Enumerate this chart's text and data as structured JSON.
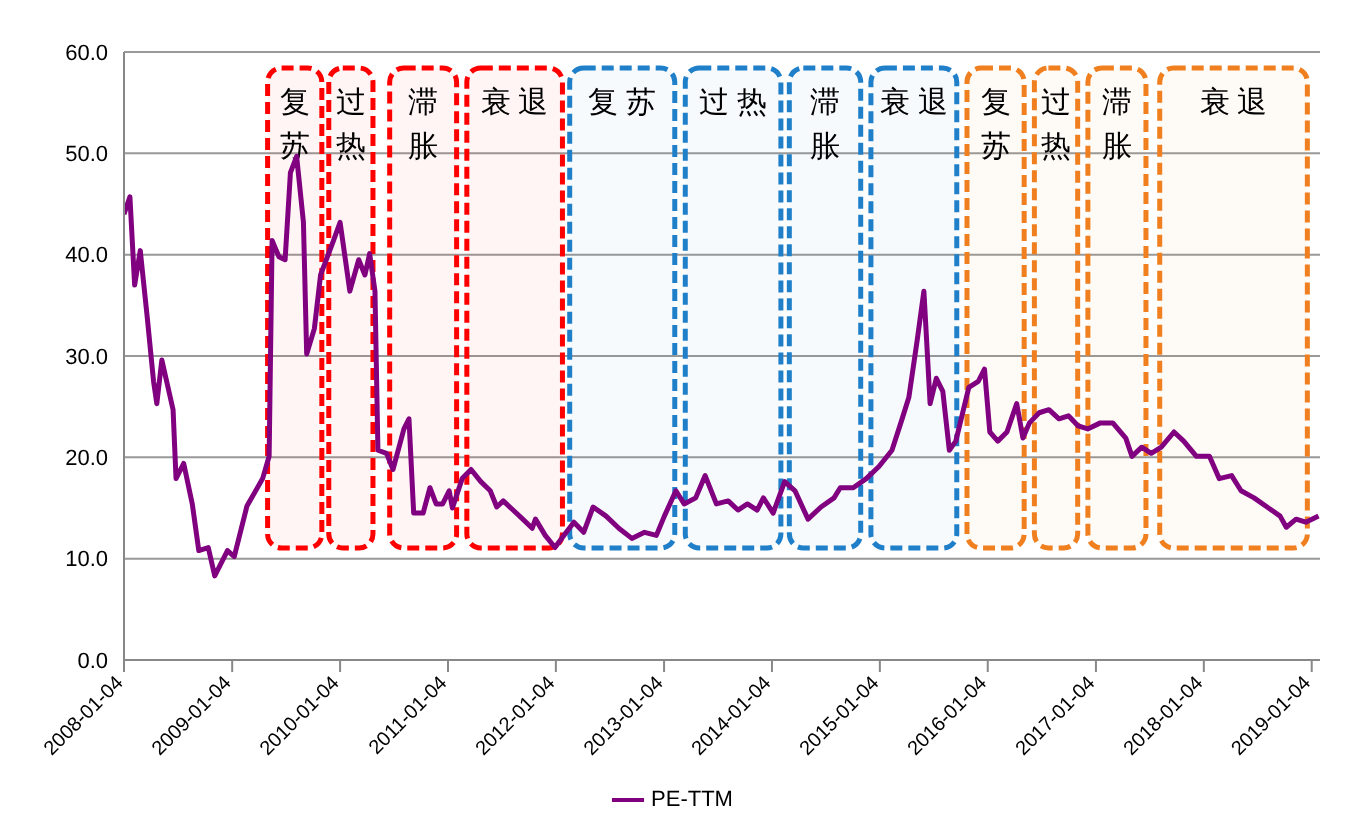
{
  "chart_data": {
    "type": "line",
    "x": [
      "2008-01-04",
      "2008-01-24",
      "2008-02-09",
      "2008-02-28",
      "2008-03-22",
      "2008-04-13",
      "2008-04-24",
      "2008-05-11",
      "2008-06-18",
      "2008-06-28",
      "2008-07-24",
      "2008-08-22",
      "2008-09-13",
      "2008-10-15",
      "2008-11-06",
      "2008-12-19",
      "2009-01-11",
      "2009-02-23",
      "2009-04-17",
      "2009-05-09",
      "2009-05-19",
      "2009-06-11",
      "2009-07-02",
      "2009-07-20",
      "2009-08-10",
      "2009-09-02",
      "2009-09-13",
      "2009-10-09",
      "2009-10-30",
      "2009-12-13",
      "2010-01-04",
      "2010-02-06",
      "2010-03-08",
      "2010-03-29",
      "2010-04-14",
      "2010-05-02",
      "2010-05-12",
      "2010-06-10",
      "2010-07-02",
      "2010-08-08",
      "2010-08-25",
      "2010-09-10",
      "2010-10-12",
      "2010-11-04",
      "2010-11-25",
      "2010-12-17",
      "2011-01-08",
      "2011-01-19",
      "2011-02-21",
      "2011-03-23",
      "2011-04-25",
      "2011-05-27",
      "2011-06-18",
      "2011-07-10",
      "2011-08-12",
      "2011-09-14",
      "2011-10-16",
      "2011-10-27",
      "2011-11-29",
      "2012-01-01",
      "2012-02-03",
      "2012-03-05",
      "2012-04-07",
      "2012-05-09",
      "2012-06-22",
      "2012-08-04",
      "2012-09-17",
      "2012-10-30",
      "2012-12-09",
      "2013-01-05",
      "2013-02-13",
      "2013-03-13",
      "2013-04-21",
      "2013-05-23",
      "2013-06-30",
      "2013-08-09",
      "2013-09-11",
      "2013-10-13",
      "2013-11-15",
      "2013-12-06",
      "2014-01-08",
      "2014-02-16",
      "2014-03-23",
      "2014-05-06",
      "2014-06-19",
      "2014-08-02",
      "2014-08-23",
      "2014-10-06",
      "2014-11-19",
      "2015-01-01",
      "2015-02-14",
      "2015-03-16",
      "2015-04-12",
      "2015-05-10",
      "2015-06-02",
      "2015-06-23",
      "2015-07-14",
      "2015-08-05",
      "2015-08-27",
      "2015-09-18",
      "2015-11-01",
      "2015-12-03",
      "2015-12-24",
      "2016-01-11",
      "2016-02-07",
      "2016-03-09",
      "2016-04-11",
      "2016-05-02",
      "2016-05-24",
      "2016-06-26",
      "2016-07-29",
      "2016-09-01",
      "2016-10-03",
      "2016-11-05",
      "2016-12-07",
      "2017-01-19",
      "2017-03-02",
      "2017-04-15",
      "2017-05-06",
      "2017-06-08",
      "2017-07-10",
      "2017-08-13",
      "2017-09-25",
      "2017-10-28",
      "2017-12-10",
      "2018-01-23",
      "2018-02-25",
      "2018-04-08",
      "2018-05-10",
      "2018-06-23",
      "2018-08-06",
      "2018-09-19",
      "2018-10-10",
      "2018-11-12",
      "2018-12-15",
      "2019-01-27"
    ],
    "series": [
      {
        "name": "PE-TTM",
        "color": "#800080",
        "values": [
          44.0,
          45.7,
          37.0,
          40.4,
          34.0,
          27.5,
          25.3,
          29.6,
          24.7,
          17.9,
          19.4,
          15.4,
          10.8,
          11.1,
          8.3,
          10.8,
          10.2,
          15.2,
          17.9,
          20.1,
          41.4,
          39.8,
          39.5,
          48.1,
          49.7,
          43.2,
          30.2,
          32.7,
          38.0,
          41.4,
          43.2,
          36.4,
          39.5,
          38.0,
          40.1,
          36.4,
          20.7,
          20.4,
          18.8,
          22.8,
          23.8,
          14.5,
          14.5,
          17.0,
          15.4,
          15.4,
          16.7,
          15.0,
          17.9,
          18.8,
          17.6,
          16.7,
          15.1,
          15.7,
          14.8,
          13.9,
          13.0,
          13.9,
          12.3,
          11.1,
          12.4,
          13.6,
          12.6,
          15.1,
          14.2,
          13.0,
          12.0,
          12.6,
          12.3,
          14.2,
          16.7,
          15.4,
          16.0,
          18.2,
          15.4,
          15.7,
          14.8,
          15.4,
          14.8,
          16.0,
          14.5,
          17.6,
          16.7,
          13.9,
          15.1,
          16.0,
          17.0,
          17.0,
          17.9,
          19.1,
          20.7,
          23.4,
          25.9,
          31.5,
          36.4,
          25.3,
          27.8,
          26.5,
          20.7,
          21.6,
          26.9,
          27.5,
          28.7,
          22.5,
          21.6,
          22.5,
          25.3,
          21.9,
          23.4,
          24.4,
          24.7,
          23.8,
          24.1,
          23.1,
          22.8,
          23.4,
          23.4,
          21.9,
          20.1,
          21.0,
          20.4,
          21.0,
          22.5,
          21.6,
          20.1,
          20.1,
          17.9,
          18.2,
          16.7,
          16.0,
          15.1,
          14.2,
          13.1,
          13.9,
          13.6,
          14.2
        ]
      }
    ],
    "xlim": [
      "2008-01-04",
      "2019-02-01"
    ],
    "xticks": [
      {
        "value": "2008-01-04",
        "label": "2008-01-04"
      },
      {
        "value": "2009-01-04",
        "label": "2009-01-04"
      },
      {
        "value": "2010-01-04",
        "label": "2010-01-04"
      },
      {
        "value": "2011-01-04",
        "label": "2011-01-04"
      },
      {
        "value": "2012-01-04",
        "label": "2012-01-04"
      },
      {
        "value": "2013-01-04",
        "label": "2013-01-04"
      },
      {
        "value": "2014-01-04",
        "label": "2014-01-04"
      },
      {
        "value": "2015-01-04",
        "label": "2015-01-04"
      },
      {
        "value": "2016-01-04",
        "label": "2016-01-04"
      },
      {
        "value": "2017-01-04",
        "label": "2017-01-04"
      },
      {
        "value": "2018-01-04",
        "label": "2018-01-04"
      },
      {
        "value": "2019-01-04",
        "label": "2019-01-04"
      }
    ],
    "ylim": [
      0,
      60
    ],
    "yticks": [
      {
        "value": 0,
        "label": "0.0"
      },
      {
        "value": 10,
        "label": "10.0"
      },
      {
        "value": 20,
        "label": "20.0"
      },
      {
        "value": 30,
        "label": "30.0"
      },
      {
        "value": 40,
        "label": "40.0"
      },
      {
        "value": 50,
        "label": "50.0"
      },
      {
        "value": 60,
        "label": "60.0"
      }
    ],
    "grid": "y",
    "legend": "bottom",
    "marker": "none",
    "line_style": "solid",
    "bands": [
      {
        "axis": "x",
        "from": "2009-04-27",
        "to": "2009-11-10",
        "label": "复苏",
        "color": "#ff0000"
      },
      {
        "axis": "x",
        "from": "2009-11-20",
        "to": "2010-05-02",
        "label": "过热",
        "color": "#ff0000"
      },
      {
        "axis": "x",
        "from": "2010-06-14",
        "to": "2011-02-09",
        "label": "滞胀",
        "color": "#ff0000"
      },
      {
        "axis": "x",
        "from": "2011-03-02",
        "to": "2012-02-02",
        "label": "衰退",
        "color": "#ff0000"
      },
      {
        "axis": "x",
        "from": "2012-02-13",
        "to": "2013-02-16",
        "label": "复苏",
        "color": "#1f7fc8"
      },
      {
        "axis": "x",
        "from": "2013-03-10",
        "to": "2014-02-10",
        "label": "过热",
        "color": "#1f7fc8"
      },
      {
        "axis": "x",
        "from": "2014-02-25",
        "to": "2014-11-07",
        "label": "滞胀",
        "color": "#1f7fc8"
      },
      {
        "axis": "x",
        "from": "2014-11-28",
        "to": "2015-09-28",
        "label": "衰退",
        "color": "#1f7fc8"
      },
      {
        "axis": "x",
        "from": "2015-10-19",
        "to": "2016-05-13",
        "label": "复苏",
        "color": "#f07f1f"
      },
      {
        "axis": "x",
        "from": "2016-06-03",
        "to": "2016-11-10",
        "label": "过热",
        "color": "#f07f1f"
      },
      {
        "axis": "x",
        "from": "2016-12-01",
        "to": "2017-06-29",
        "label": "滞胀",
        "color": "#f07f1f"
      },
      {
        "axis": "x",
        "from": "2017-08-01",
        "to": "2018-12-27",
        "label": "衰退",
        "color": "#f07f1f"
      }
    ]
  }
}
